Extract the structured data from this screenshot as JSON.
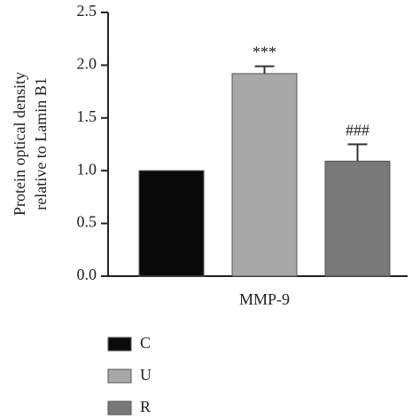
{
  "chart_data": {
    "type": "bar",
    "y_label": [
      "Protein optical density",
      "relative to Lamin B1"
    ],
    "categories": [
      "MMP-9"
    ],
    "series": [
      {
        "name": "C",
        "color": "#0a0a0a",
        "values": [
          1.0
        ]
      },
      {
        "name": "U",
        "color": "#a8a8a8",
        "values": [
          1.92
        ],
        "errors": [
          0.07
        ],
        "annotations": [
          "***"
        ]
      },
      {
        "name": "R",
        "color": "#787878",
        "values": [
          1.09
        ],
        "errors": [
          0.16
        ],
        "annotations": [
          "###"
        ]
      }
    ],
    "ylim": [
      0,
      2.5
    ],
    "yticks": [
      {
        "value": 0,
        "label": "0.0"
      },
      0.5,
      {
        "value": 1,
        "label": "1.0"
      },
      1.5,
      {
        "value": 2,
        "label": "2.0"
      },
      2.5
    ],
    "legend": "bottom-left"
  }
}
